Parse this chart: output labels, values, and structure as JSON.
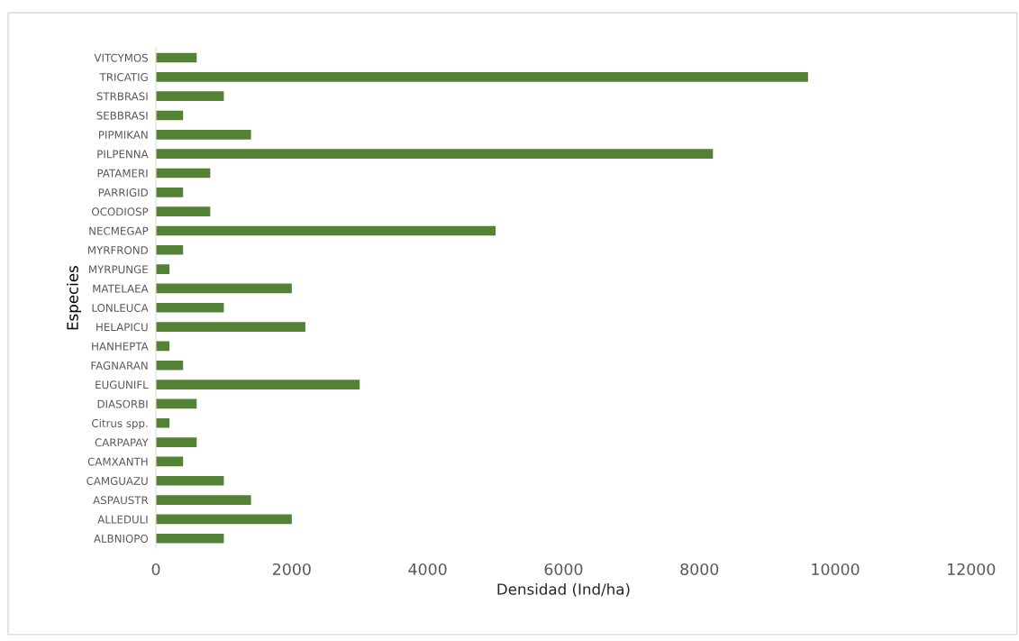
{
  "chart_data": {
    "type": "bar",
    "orientation": "horizontal",
    "xlabel": "Densidad (Ind/ha)",
    "ylabel": "Especies",
    "categories": [
      "VITCYMOS",
      "TRICATIG",
      "STRBRASI",
      "SEBBRASI",
      "PIPMIKAN",
      "PILPENNA",
      "PATAMERI",
      "PARRIGID",
      "OCODIOSP",
      "NECMEGAP",
      "MYRFROND",
      "MYRPUNGE",
      "MATELAEA",
      "LONLEUCA",
      "HELAPICU",
      "HANHEPTA",
      "FAGNARAN",
      "EUGUNIFL",
      "DIASORBI",
      "Citrus spp.",
      "CARPAPAY",
      "CAMXANTH",
      "CAMGUAZU",
      "ASPAUSTR",
      "ALLEDULI",
      "ALBNIOPO"
    ],
    "values": [
      600,
      9600,
      1000,
      400,
      1400,
      8200,
      800,
      400,
      800,
      5000,
      400,
      200,
      2000,
      1000,
      2200,
      200,
      400,
      3000,
      600,
      200,
      600,
      400,
      1000,
      1400,
      2000,
      1000
    ],
    "color": "#548235",
    "xlim": [
      0,
      12000
    ],
    "xticks": [
      0,
      2000,
      4000,
      6000,
      8000,
      10000,
      12000
    ],
    "grid": false
  }
}
